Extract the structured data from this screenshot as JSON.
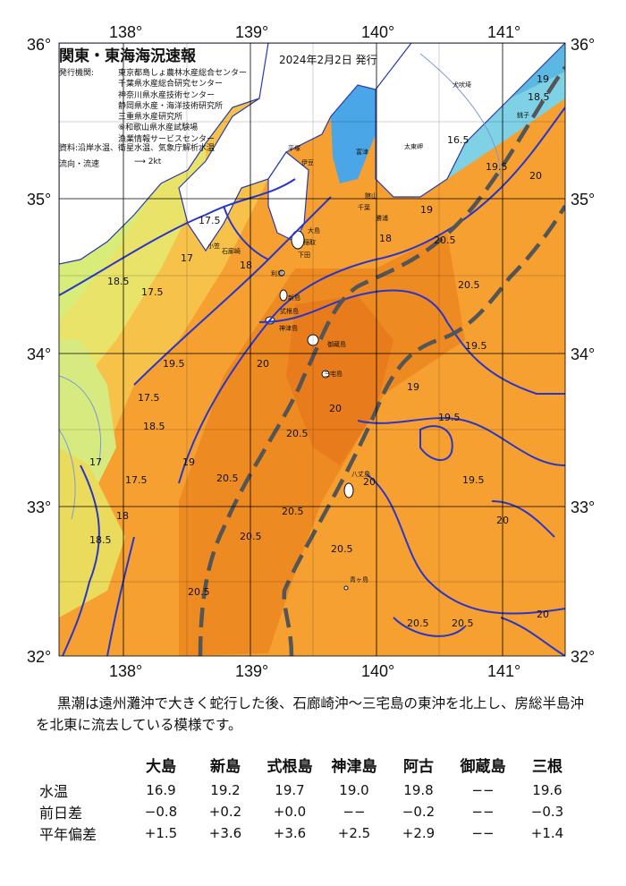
{
  "header": {
    "title": "関東・東海海況速報",
    "date": "2024年2月2日 発行",
    "issuer_label": "発行機関:",
    "issuers": [
      "東京都島しょ農林水産総合センター",
      "千葉県水産総合研究センター",
      "神奈川県水産技術センター",
      "静岡県水産・海洋技術研究所",
      "三重県水産研究所",
      "⑥和歌山県水産試験場",
      "漁業情報サービスセンター"
    ],
    "sources": "資料:沿岸水温、衛星水温、気象庁解析水温",
    "flow_label": "流向・流速",
    "flow_scale": "2kt"
  },
  "axes": {
    "lon_ticks": [
      "138°",
      "139°",
      "140°",
      "141°"
    ],
    "lat_ticks": [
      "36°",
      "35°",
      "34°",
      "33°",
      "32°"
    ]
  },
  "place_names": [
    "大島",
    "利島",
    "新島",
    "式根島",
    "神津島",
    "三宅島",
    "御蔵島",
    "八丈島",
    "青ヶ島",
    "小笠",
    "平塚",
    "富津",
    "館山",
    "千葉",
    "勝浦",
    "太東岬",
    "銚子",
    "犬吠埼",
    "伊豆",
    "下田",
    "稲取",
    "石廊崎"
  ],
  "isotherm_labels": [
    "19",
    "18.5",
    "16.5",
    "17.5",
    "17",
    "18",
    "19.5",
    "20",
    "20.5",
    "19",
    "18",
    "17.5",
    "18.5",
    "19.5",
    "20",
    "20.5",
    "20.5",
    "20",
    "19.5",
    "19",
    "20.5",
    "20",
    "19.5",
    "20.5",
    "20.5",
    "20.5",
    "20.5",
    "20",
    "19.5",
    "20",
    "18.5",
    "19",
    "20.5",
    "20.5",
    "17.5",
    "18",
    "17",
    "18.5",
    "17.5"
  ],
  "summary": "黒潮は遠州灘沖で大きく蛇行した後、石廊崎沖～三宅島の東沖を北上し、房総半島沖を北東に流去している模様です。",
  "table": {
    "columns": [
      "大島",
      "新島",
      "式根島",
      "神津島",
      "阿古",
      "御蔵島",
      "三根"
    ],
    "rows": [
      {
        "label": "水温",
        "values": [
          "16.9",
          "19.2",
          "19.7",
          "19.0",
          "19.8",
          "−−",
          "19.6"
        ]
      },
      {
        "label": "前日差",
        "values": [
          "−0.8",
          "+0.2",
          "+0.0",
          "−−",
          "−0.2",
          "−−",
          "−0.3"
        ]
      },
      {
        "label": "平年偏差",
        "values": [
          "+1.5",
          "+3.6",
          "+3.6",
          "+2.5",
          "+2.9",
          "−−",
          "+1.4"
        ]
      }
    ]
  }
}
